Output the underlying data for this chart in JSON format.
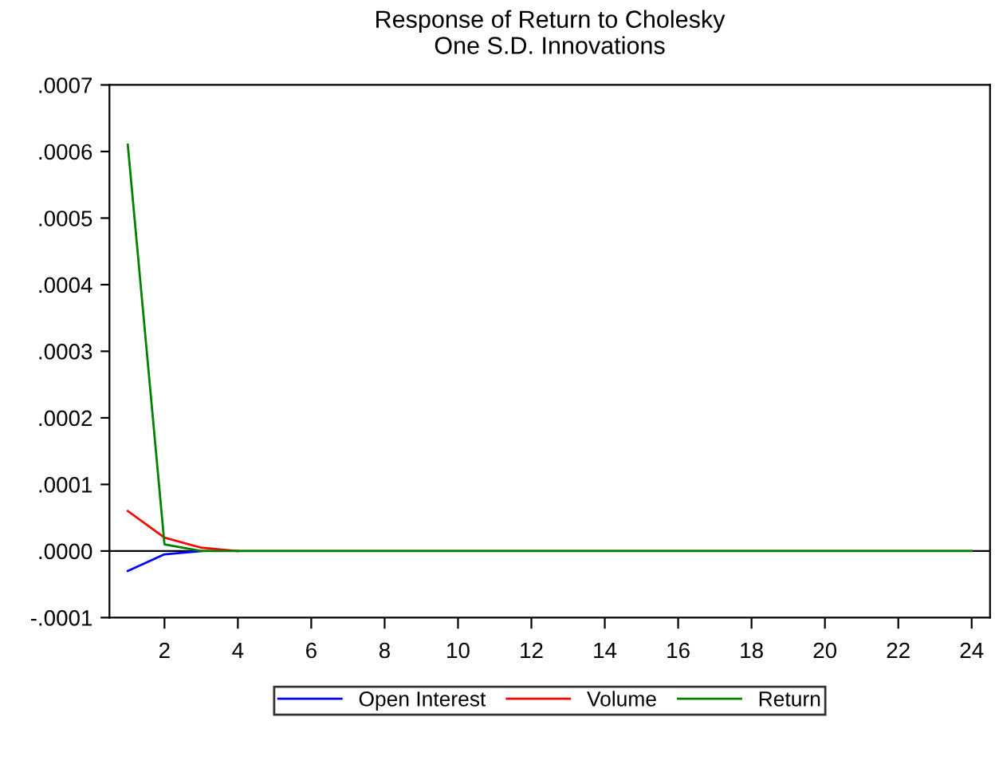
{
  "chart_data": {
    "type": "line",
    "title": "Response of Return to Cholesky\nOne S.D. Innovations",
    "x": [
      1,
      2,
      3,
      4,
      5,
      6,
      7,
      8,
      9,
      10,
      11,
      12,
      13,
      14,
      15,
      16,
      17,
      18,
      19,
      20,
      21,
      22,
      23,
      24
    ],
    "series": [
      {
        "name": "Open Interest",
        "color": "#0000ff",
        "values": [
          -3e-05,
          -5e-06,
          0,
          null,
          null,
          null,
          null,
          null,
          null,
          null,
          null,
          null,
          null,
          null,
          null,
          null,
          null,
          null,
          null,
          null,
          null,
          null,
          null,
          null
        ]
      },
      {
        "name": "Volume",
        "color": "#ff0000",
        "values": [
          6e-05,
          2e-05,
          5e-06,
          0,
          null,
          null,
          null,
          null,
          null,
          null,
          null,
          null,
          null,
          null,
          null,
          null,
          null,
          null,
          null,
          null,
          null,
          null,
          null,
          null
        ]
      },
      {
        "name": "Return",
        "color": "#008000",
        "values": [
          0.00061,
          1e-05,
          0,
          0,
          0,
          0,
          0,
          0,
          0,
          0,
          0,
          0,
          0,
          0,
          0,
          0,
          0,
          0,
          0,
          0,
          0,
          0,
          0,
          0
        ]
      }
    ],
    "xlim": [
      0.5,
      24.5
    ],
    "xticks": [
      2,
      4,
      6,
      8,
      10,
      12,
      14,
      16,
      18,
      20,
      22,
      24
    ],
    "ylim": [
      -0.0001,
      0.0007
    ],
    "yticks": [
      {
        "value": -0.0001,
        "label": "-.0001"
      },
      {
        "value": 0,
        "label": ".0000"
      },
      {
        "value": 0.0001,
        "label": ".0001"
      },
      {
        "value": 0.0002,
        "label": ".0002"
      },
      {
        "value": 0.0003,
        "label": ".0003"
      },
      {
        "value": 0.0004,
        "label": ".0004"
      },
      {
        "value": 0.0005,
        "label": ".0005"
      },
      {
        "value": 0.0006,
        "label": ".0006"
      },
      {
        "value": 0.0007,
        "label": ".0007"
      }
    ],
    "ref_lines": [
      {
        "axis": "y",
        "value": 0,
        "color": "#000000"
      }
    ],
    "legend": "bottom",
    "grid": false
  }
}
